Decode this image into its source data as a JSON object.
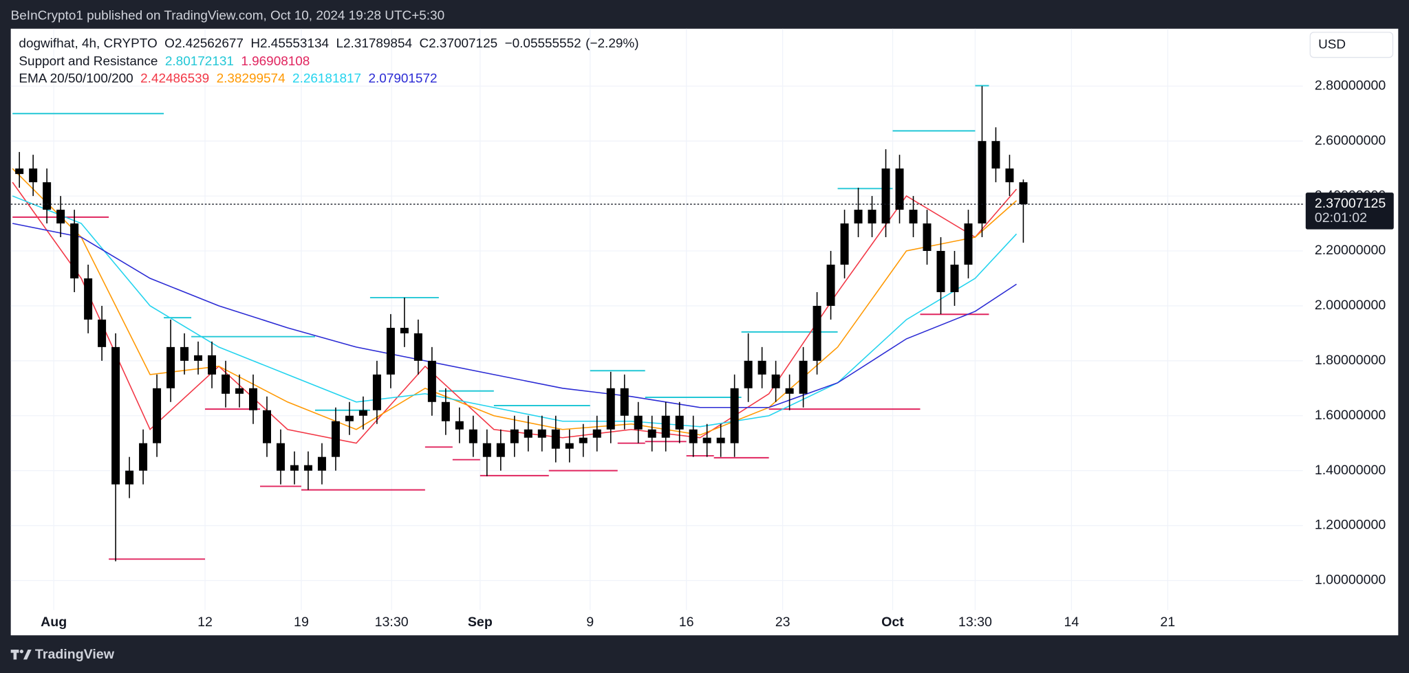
{
  "published": "BeInCrypto1 published on TradingView.com, Oct 10, 2024 19:28 UTC+5:30",
  "footer": "TradingView",
  "chart_data": {
    "type": "candlestick",
    "currency": "USD",
    "legend": {
      "symbol": "dogwifhat, 4h, CRYPTO",
      "ohlc": [
        {
          "label": "O",
          "value": 2.42562677
        },
        {
          "label": "H",
          "value": 2.45553134
        },
        {
          "label": "L",
          "value": 2.31789854
        },
        {
          "label": "C",
          "value": 2.37007125
        }
      ],
      "change": {
        "value": -0.05555552,
        "label": "−0.05555552"
      },
      "change_pct": {
        "value": -2.29,
        "label": "(−2.29%)"
      }
    },
    "countdown": "02:01:02",
    "color": "#000000",
    "grid": true,
    "xlim": [
      "2024-07-28T21:00",
      "2024-10-30T20:00"
    ],
    "ylim": [
      0.892,
      3.009
    ],
    "xticks": [
      {
        "value": "2024-08-01",
        "label": "Aug"
      },
      {
        "value": "2024-08-12",
        "label": "12"
      },
      {
        "value": "2024-08-19",
        "label": "19"
      },
      {
        "value": "2024-08-25T13:30",
        "label": "13:30"
      },
      {
        "value": "2024-09-01",
        "label": "Sep"
      },
      {
        "value": "2024-09-09",
        "label": "9"
      },
      {
        "value": "2024-09-16",
        "label": "16"
      },
      {
        "value": "2024-09-23",
        "label": "23"
      },
      {
        "value": "2024-10-01",
        "label": "Oct"
      },
      {
        "value": "2024-10-07",
        "label": "13:30"
      },
      {
        "value": "2024-10-14",
        "label": "14"
      },
      {
        "value": "2024-10-21",
        "label": "21"
      }
    ],
    "yticks": [
      {
        "value": 1.0,
        "label": "1.00000000"
      },
      {
        "value": 1.2,
        "label": "1.20000000"
      },
      {
        "value": 1.4,
        "label": "1.40000000"
      },
      {
        "value": 1.6,
        "label": "1.60000000"
      },
      {
        "value": 1.8,
        "label": "1.80000000"
      },
      {
        "value": 2.0,
        "label": "2.00000000"
      },
      {
        "value": 2.2,
        "label": "2.20000000"
      },
      {
        "value": 2.4,
        "label": "2.40000000"
      },
      {
        "value": 2.6,
        "label": "2.60000000"
      },
      {
        "value": 2.8,
        "label": "2.80000000"
      }
    ],
    "x": [
      "2024-07-29",
      "2024-07-30",
      "2024-07-31",
      "2024-08-01",
      "2024-08-02",
      "2024-08-03",
      "2024-08-04",
      "2024-08-05",
      "2024-08-06",
      "2024-08-07",
      "2024-08-08",
      "2024-08-09",
      "2024-08-10",
      "2024-08-11",
      "2024-08-12",
      "2024-08-13",
      "2024-08-14",
      "2024-08-15",
      "2024-08-16",
      "2024-08-17",
      "2024-08-18",
      "2024-08-19",
      "2024-08-20",
      "2024-08-21",
      "2024-08-22",
      "2024-08-23",
      "2024-08-24",
      "2024-08-25",
      "2024-08-26",
      "2024-08-27",
      "2024-08-28",
      "2024-08-29",
      "2024-08-30",
      "2024-08-31",
      "2024-09-01",
      "2024-09-02",
      "2024-09-03",
      "2024-09-04",
      "2024-09-05",
      "2024-09-06",
      "2024-09-07",
      "2024-09-08",
      "2024-09-09",
      "2024-09-10",
      "2024-09-11",
      "2024-09-12",
      "2024-09-13",
      "2024-09-14",
      "2024-09-15",
      "2024-09-16",
      "2024-09-17",
      "2024-09-18",
      "2024-09-19",
      "2024-09-20",
      "2024-09-21",
      "2024-09-22",
      "2024-09-23",
      "2024-09-24",
      "2024-09-25",
      "2024-09-26",
      "2024-09-27",
      "2024-09-28",
      "2024-09-29",
      "2024-09-30",
      "2024-10-01",
      "2024-10-02",
      "2024-10-03",
      "2024-10-04",
      "2024-10-05",
      "2024-10-06",
      "2024-10-07",
      "2024-10-08",
      "2024-10-09",
      "2024-10-10"
    ],
    "open": [
      2.48,
      2.5,
      2.45,
      2.35,
      2.3,
      2.1,
      1.95,
      1.85,
      1.35,
      1.4,
      1.5,
      1.7,
      1.85,
      1.8,
      1.82,
      1.75,
      1.68,
      1.7,
      1.62,
      1.5,
      1.4,
      1.42,
      1.4,
      1.45,
      1.58,
      1.6,
      1.62,
      1.75,
      1.92,
      1.9,
      1.8,
      1.65,
      1.58,
      1.55,
      1.5,
      1.45,
      1.5,
      1.55,
      1.52,
      1.55,
      1.48,
      1.5,
      1.52,
      1.55,
      1.7,
      1.6,
      1.55,
      1.52,
      1.6,
      1.55,
      1.5,
      1.52,
      1.5,
      1.7,
      1.8,
      1.75,
      1.7,
      1.68,
      1.8,
      2.0,
      2.15,
      2.3,
      2.35,
      2.3,
      2.5,
      2.35,
      2.3,
      2.2,
      2.05,
      2.15,
      2.3,
      2.6,
      2.5,
      2.45
    ],
    "high": [
      2.56,
      2.55,
      2.5,
      2.4,
      2.35,
      2.15,
      2.0,
      1.9,
      1.45,
      1.55,
      1.75,
      1.95,
      1.9,
      1.87,
      1.87,
      1.8,
      1.75,
      1.75,
      1.67,
      1.55,
      1.47,
      1.47,
      1.5,
      1.63,
      1.65,
      1.67,
      1.8,
      1.97,
      2.03,
      1.95,
      1.85,
      1.7,
      1.63,
      1.6,
      1.55,
      1.55,
      1.6,
      1.6,
      1.6,
      1.6,
      1.55,
      1.57,
      1.6,
      1.76,
      1.75,
      1.65,
      1.6,
      1.65,
      1.65,
      1.6,
      1.57,
      1.57,
      1.75,
      1.9,
      1.85,
      1.8,
      1.75,
      1.85,
      2.05,
      2.2,
      2.35,
      2.43,
      2.4,
      2.57,
      2.55,
      2.4,
      2.35,
      2.25,
      2.2,
      2.35,
      2.8,
      2.65,
      2.55,
      2.46
    ],
    "low": [
      2.43,
      2.4,
      2.3,
      2.25,
      2.05,
      1.9,
      1.8,
      1.07,
      1.3,
      1.35,
      1.45,
      1.65,
      1.75,
      1.75,
      1.7,
      1.63,
      1.63,
      1.57,
      1.45,
      1.35,
      1.35,
      1.33,
      1.35,
      1.4,
      1.53,
      1.55,
      1.57,
      1.7,
      1.85,
      1.75,
      1.6,
      1.53,
      1.5,
      1.45,
      1.38,
      1.4,
      1.45,
      1.47,
      1.47,
      1.43,
      1.43,
      1.45,
      1.47,
      1.5,
      1.55,
      1.5,
      1.47,
      1.47,
      1.5,
      1.45,
      1.45,
      1.45,
      1.45,
      1.65,
      1.7,
      1.65,
      1.62,
      1.63,
      1.75,
      1.95,
      2.1,
      2.25,
      2.25,
      2.25,
      2.3,
      2.25,
      2.15,
      1.97,
      2.0,
      2.1,
      2.25,
      2.45,
      2.4,
      2.23
    ],
    "close": [
      2.5,
      2.45,
      2.35,
      2.3,
      2.1,
      1.95,
      1.85,
      1.35,
      1.4,
      1.5,
      1.7,
      1.85,
      1.8,
      1.82,
      1.75,
      1.68,
      1.7,
      1.62,
      1.5,
      1.4,
      1.42,
      1.4,
      1.45,
      1.58,
      1.6,
      1.62,
      1.75,
      1.92,
      1.9,
      1.8,
      1.65,
      1.58,
      1.55,
      1.5,
      1.45,
      1.5,
      1.55,
      1.52,
      1.55,
      1.48,
      1.5,
      1.52,
      1.55,
      1.7,
      1.6,
      1.55,
      1.52,
      1.6,
      1.55,
      1.5,
      1.52,
      1.5,
      1.7,
      1.8,
      1.75,
      1.7,
      1.68,
      1.8,
      2.0,
      2.15,
      2.3,
      2.35,
      2.3,
      2.5,
      2.35,
      2.3,
      2.2,
      2.05,
      2.15,
      2.3,
      2.6,
      2.5,
      2.45,
      2.37
    ],
    "support_resistance": {
      "name": "Support and Resistance",
      "resistance": {
        "color": "#22c7d6",
        "segments": [
          {
            "start": "2024-07-29",
            "end": "2024-08-09",
            "value": 2.7
          },
          {
            "start": "2024-08-09",
            "end": "2024-08-11",
            "value": 1.957
          },
          {
            "start": "2024-08-11",
            "end": "2024-08-20",
            "value": 1.888
          },
          {
            "start": "2024-08-20",
            "end": "2024-08-24",
            "value": 1.62
          },
          {
            "start": "2024-08-24",
            "end": "2024-08-29",
            "value": 2.03
          },
          {
            "start": "2024-08-29",
            "end": "2024-09-02",
            "value": 1.69
          },
          {
            "start": "2024-09-02",
            "end": "2024-09-09",
            "value": 1.637
          },
          {
            "start": "2024-09-09",
            "end": "2024-09-13",
            "value": 1.764
          },
          {
            "start": "2024-09-13",
            "end": "2024-09-20",
            "value": 1.667
          },
          {
            "start": "2024-09-20",
            "end": "2024-09-27",
            "value": 1.905
          },
          {
            "start": "2024-09-27",
            "end": "2024-10-01",
            "value": 2.427
          },
          {
            "start": "2024-10-01",
            "end": "2024-10-07",
            "value": 2.637
          },
          {
            "start": "2024-10-07",
            "end": "2024-10-08",
            "value": 2.80172131
          }
        ]
      },
      "support": {
        "color": "#e0245e",
        "segments": [
          {
            "start": "2024-07-29",
            "end": "2024-08-05",
            "value": 2.323
          },
          {
            "start": "2024-08-05",
            "end": "2024-08-12",
            "value": 1.078
          },
          {
            "start": "2024-08-12",
            "end": "2024-08-16",
            "value": 1.624
          },
          {
            "start": "2024-08-16",
            "end": "2024-08-19",
            "value": 1.343
          },
          {
            "start": "2024-08-19",
            "end": "2024-08-28",
            "value": 1.33
          },
          {
            "start": "2024-08-28",
            "end": "2024-08-30",
            "value": 1.486
          },
          {
            "start": "2024-08-30",
            "end": "2024-09-01",
            "value": 1.44
          },
          {
            "start": "2024-09-01",
            "end": "2024-09-06",
            "value": 1.382
          },
          {
            "start": "2024-09-06",
            "end": "2024-09-11",
            "value": 1.4
          },
          {
            "start": "2024-09-11",
            "end": "2024-09-13",
            "value": 1.5
          },
          {
            "start": "2024-09-13",
            "end": "2024-09-16",
            "value": 1.506
          },
          {
            "start": "2024-09-16",
            "end": "2024-09-18",
            "value": 1.454
          },
          {
            "start": "2024-09-18",
            "end": "2024-09-22",
            "value": 1.447
          },
          {
            "start": "2024-09-22",
            "end": "2024-10-03",
            "value": 1.624
          },
          {
            "start": "2024-10-03",
            "end": "2024-10-08",
            "value": 1.96908108
          }
        ]
      }
    },
    "ema": {
      "name": "EMA 20/50/100/200",
      "x": [
        "2024-07-29",
        "2024-08-03",
        "2024-08-08",
        "2024-08-13",
        "2024-08-18",
        "2024-08-23",
        "2024-08-28",
        "2024-09-02",
        "2024-09-07",
        "2024-09-12",
        "2024-09-17",
        "2024-09-22",
        "2024-09-27",
        "2024-10-02",
        "2024-10-07",
        "2024-10-10"
      ],
      "series": [
        {
          "color": "#f23645",
          "values": [
            2.45,
            2.1,
            1.55,
            1.78,
            1.55,
            1.5,
            1.78,
            1.55,
            1.52,
            1.55,
            1.52,
            1.68,
            2.05,
            2.4,
            2.25,
            2.42486539
          ]
        },
        {
          "color": "#ff9800",
          "values": [
            2.5,
            2.25,
            1.75,
            1.78,
            1.65,
            1.55,
            1.7,
            1.6,
            1.55,
            1.57,
            1.53,
            1.63,
            1.85,
            2.2,
            2.25,
            2.38299574
          ]
        },
        {
          "color": "#22d3ee",
          "values": [
            2.4,
            2.3,
            2.0,
            1.85,
            1.75,
            1.65,
            1.68,
            1.63,
            1.58,
            1.58,
            1.56,
            1.6,
            1.72,
            1.95,
            2.1,
            2.26181817
          ]
        },
        {
          "color": "#2a2ad4",
          "values": [
            2.3,
            2.25,
            2.1,
            2.0,
            1.92,
            1.85,
            1.8,
            1.75,
            1.7,
            1.67,
            1.63,
            1.63,
            1.72,
            1.88,
            1.98,
            2.07901572
          ]
        }
      ]
    }
  }
}
